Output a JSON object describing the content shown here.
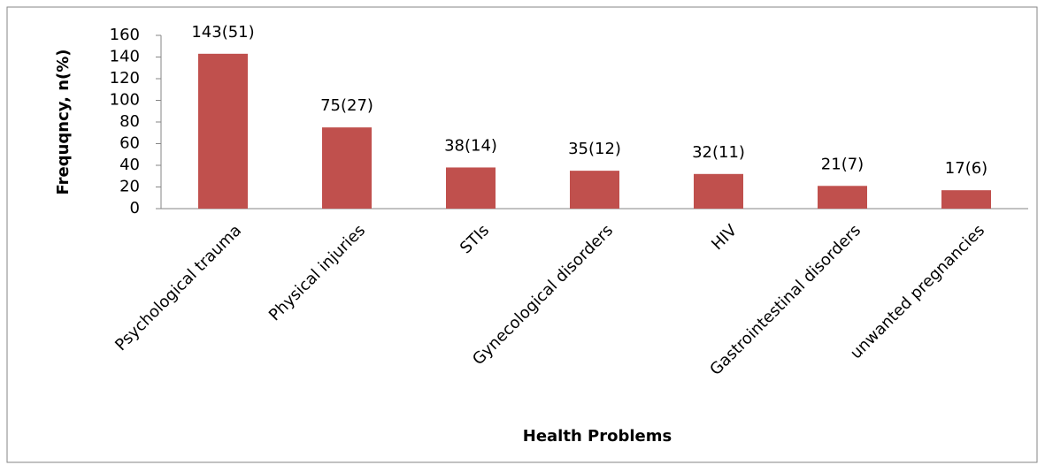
{
  "chart_data": {
    "type": "bar",
    "x_label": "Health Problems",
    "y_label": "Frequqncy, n(%)",
    "categories": [
      "Psychological trauma",
      "Physical injuries",
      "STIs",
      "Gynecological disorders",
      "HIV",
      "Gastrointestinal disorders",
      "unwanted pregnancies"
    ],
    "values": [
      143,
      75,
      38,
      35,
      32,
      21,
      17
    ],
    "value_labels": [
      "143(51)",
      "75(27)",
      "38(14)",
      "35(12)",
      "32(11)",
      "21(7)",
      "17(6)"
    ],
    "color": "#c0504d",
    "ylim": [
      0,
      160
    ],
    "yticks": [
      0,
      20,
      40,
      60,
      80,
      100,
      120,
      140,
      160
    ],
    "grid": false
  }
}
